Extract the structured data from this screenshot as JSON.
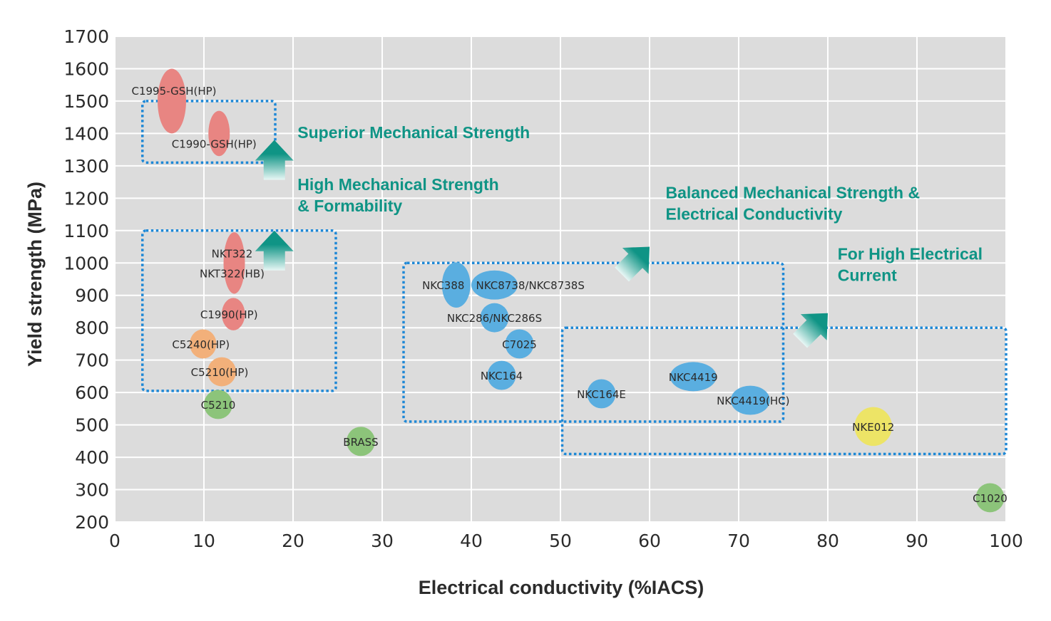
{
  "chart_data": {
    "type": "scatter",
    "title": "",
    "xlabel": "Electrical conductivity (%IACS)",
    "ylabel": "Yield strength (MPa)",
    "xlim": [
      0,
      100
    ],
    "ylim": [
      200,
      1700
    ],
    "xticks": [
      0,
      10,
      20,
      30,
      40,
      50,
      60,
      70,
      80,
      90,
      100
    ],
    "yticks": [
      200,
      300,
      400,
      500,
      600,
      700,
      800,
      900,
      1000,
      1100,
      1200,
      1300,
      1400,
      1500,
      1600,
      1700
    ],
    "grid": true,
    "colors": {
      "background": "#dcdcdc",
      "grid": "#ffffff",
      "red": "#e88582",
      "orange": "#f2b07a",
      "green": "#8cc47a",
      "blue": "#5aaee0",
      "yellow": "#ede466",
      "box": "#1e88d6",
      "annotation": "#0f9485"
    },
    "points": [
      {
        "label": "C1995-GSH(HP)",
        "x": 6.4,
        "y": 1500,
        "x_spread": 1.6,
        "y_spread": 100,
        "color": "red"
      },
      {
        "label": "C1990-GSH(HP)",
        "x": 11.7,
        "y": 1400,
        "x_spread": 1.2,
        "y_spread": 70,
        "color": "red"
      },
      {
        "label": "NKT322",
        "x": 13.4,
        "y": 1000,
        "x_spread": 1.2,
        "y_spread": 95,
        "color": "red",
        "label2": "NKT322(HB)"
      },
      {
        "label": "C1990(HP)",
        "x": 13.3,
        "y": 842,
        "x_spread": 1.3,
        "y_spread": 50,
        "color": "red"
      },
      {
        "label": "C5240(HP)",
        "x": 9.9,
        "y": 750,
        "x_spread": 1.5,
        "y_spread": 45,
        "color": "orange"
      },
      {
        "label": "C5210(HP)",
        "x": 12.0,
        "y": 664,
        "x_spread": 1.6,
        "y_spread": 45,
        "color": "orange"
      },
      {
        "label": "C5210",
        "x": 11.6,
        "y": 563,
        "x_spread": 1.6,
        "y_spread": 45,
        "color": "green"
      },
      {
        "label": "BRASS",
        "x": 27.6,
        "y": 449,
        "x_spread": 1.6,
        "y_spread": 45,
        "color": "green"
      },
      {
        "label": "NKC388",
        "x": 38.3,
        "y": 932,
        "x_spread": 1.6,
        "y_spread": 70,
        "color": "blue"
      },
      {
        "label": "NKC8738/NKC8738S",
        "x": 42.6,
        "y": 932,
        "x_spread": 2.6,
        "y_spread": 45,
        "color": "blue"
      },
      {
        "label": "NKC286/NKC286S",
        "x": 42.6,
        "y": 831,
        "x_spread": 1.6,
        "y_spread": 45,
        "color": "blue"
      },
      {
        "label": "C7025",
        "x": 45.4,
        "y": 750,
        "x_spread": 1.6,
        "y_spread": 45,
        "color": "blue"
      },
      {
        "label": "NKC164",
        "x": 43.4,
        "y": 653,
        "x_spread": 1.6,
        "y_spread": 45,
        "color": "blue"
      },
      {
        "label": "NKC164E",
        "x": 54.6,
        "y": 596,
        "x_spread": 1.6,
        "y_spread": 45,
        "color": "blue"
      },
      {
        "label": "NKC4419",
        "x": 64.9,
        "y": 649,
        "x_spread": 2.6,
        "y_spread": 45,
        "color": "blue"
      },
      {
        "label": "NKC4419(HC)",
        "x": 71.3,
        "y": 576,
        "x_spread": 2.2,
        "y_spread": 45,
        "color": "blue"
      },
      {
        "label": "NKE012",
        "x": 85.1,
        "y": 495,
        "x_spread": 2.1,
        "y_spread": 60,
        "color": "yellow"
      },
      {
        "label": "C1020",
        "x": 98.2,
        "y": 275,
        "x_spread": 1.6,
        "y_spread": 45,
        "color": "green"
      }
    ],
    "regions": [
      {
        "name": "superior",
        "x0": 3.1,
        "x1": 18.0,
        "y0": 1310,
        "y1": 1500
      },
      {
        "name": "high-mech",
        "x0": 3.1,
        "x1": 24.8,
        "y0": 605,
        "y1": 1100
      },
      {
        "name": "balanced",
        "x0": 32.4,
        "x1": 75.0,
        "y0": 510,
        "y1": 1000
      },
      {
        "name": "high-current",
        "x0": 50.2,
        "x1": 100,
        "y0": 410,
        "y1": 800
      }
    ],
    "annotations": [
      {
        "name": "superior",
        "lines": [
          "Superior Mechanical Strength"
        ],
        "x": 20.5,
        "y": 1385,
        "arrow": {
          "x": 17.9,
          "y": 1380,
          "dir": "up"
        }
      },
      {
        "name": "high-mech",
        "lines": [
          "High Mechanical Strength",
          "& Formability"
        ],
        "x": 20.5,
        "y": 1225,
        "arrow": {
          "x": 17.9,
          "y": 1100,
          "dir": "up"
        }
      },
      {
        "name": "balanced",
        "lines": [
          "Balanced Mechanical Strength &",
          "Electrical Conductivity"
        ],
        "x": 61.8,
        "y": 1200,
        "arrow": {
          "x": 60,
          "y": 1050,
          "dir": "up-right"
        }
      },
      {
        "name": "high-current",
        "lines": [
          "For High Electrical",
          "Current"
        ],
        "x": 81.1,
        "y": 1010,
        "arrow": {
          "x": 80,
          "y": 845,
          "dir": "up-right"
        }
      }
    ]
  }
}
